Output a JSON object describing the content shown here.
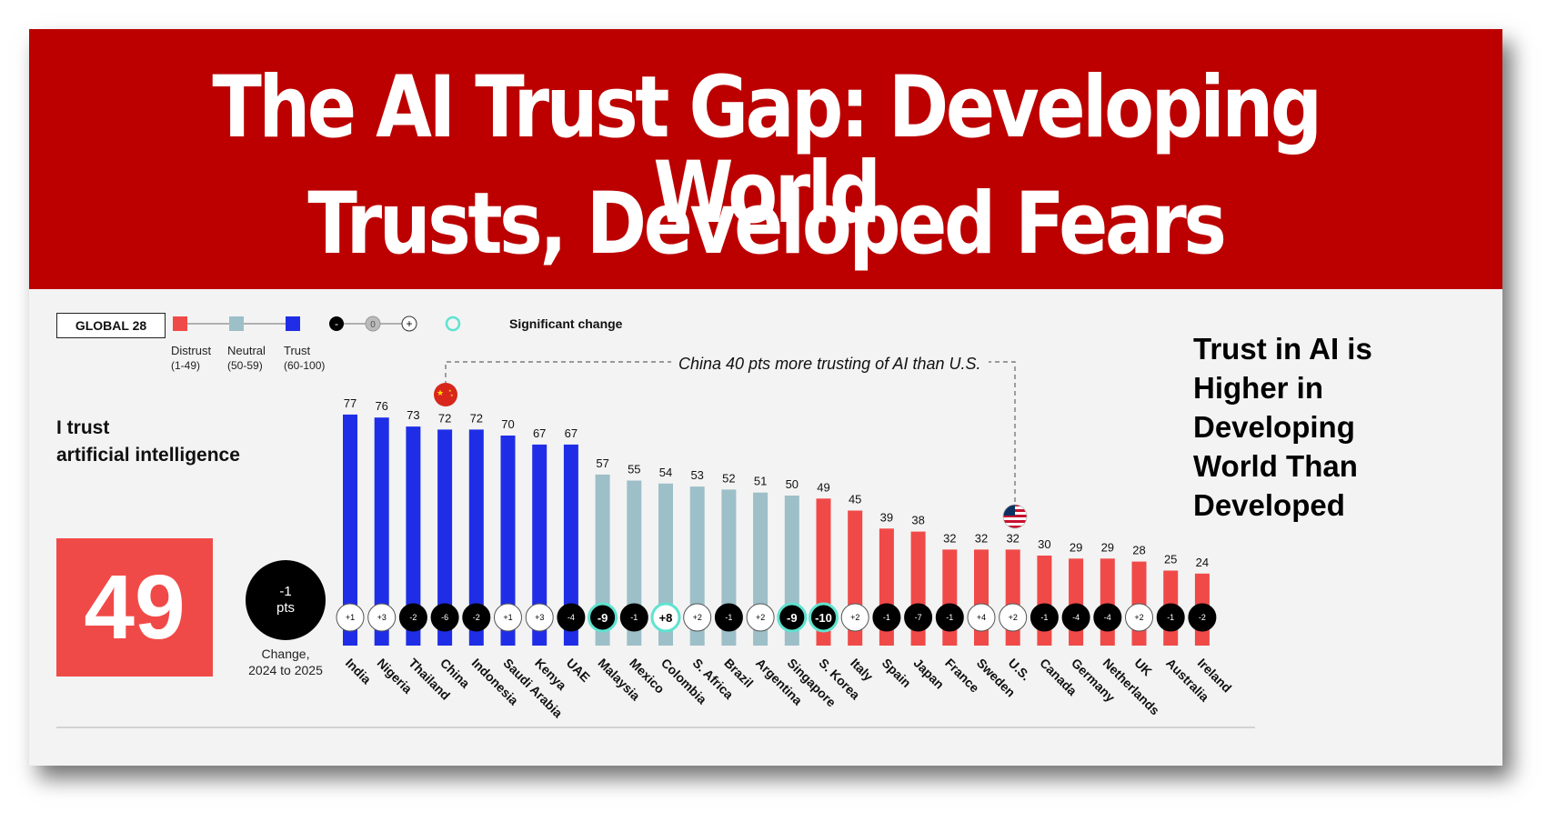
{
  "banner": {
    "line1": "The AI Trust Gap: Developing World",
    "line2": "Trusts, Developed Fears"
  },
  "legend": {
    "global_label": "GLOBAL 28",
    "distrust": "Distrust",
    "distrust_range": "(1-49)",
    "neutral": "Neutral",
    "neutral_range": "(50-59)",
    "trust": "Trust",
    "trust_range": "(60-100)",
    "scale_minus": "-",
    "scale_zero": "0",
    "scale_plus": "+",
    "significant_change": "Significant change"
  },
  "annotation": "China 40 pts more trusting of AI than U.S.",
  "side_note": [
    "Trust in AI is",
    "Higher in",
    "Developing",
    "World Than",
    "Developed"
  ],
  "metric_label": [
    "I trust",
    "artificial intelligence"
  ],
  "global_score": "49",
  "global_change": {
    "value": "-1",
    "unit": "pts",
    "caption": [
      "Change,",
      "2024 to 2025"
    ]
  },
  "colors": {
    "banner": "#bc0000",
    "trust": "#1f2ee6",
    "neutral": "#9dbfc8",
    "distrust": "#f04a48",
    "significant_ring": "#5fe3d0"
  },
  "chart_data": {
    "type": "bar",
    "title": "",
    "xlabel": "",
    "ylabel": "",
    "ylim": [
      0,
      100
    ],
    "grid": false,
    "categories": [
      "India",
      "Nigeria",
      "Thailand",
      "China",
      "Indonesia",
      "Saudi Arabia",
      "Kenya",
      "UAE",
      "Malaysia",
      "Mexico",
      "Colombia",
      "S. Africa",
      "Brazil",
      "Argentina",
      "Singapore",
      "S. Korea",
      "Italy",
      "Spain",
      "Japan",
      "France",
      "Sweden",
      "U.S.",
      "Canada",
      "Germany",
      "Netherlands",
      "UK",
      "Australia",
      "Ireland"
    ],
    "values": [
      77,
      76,
      73,
      72,
      72,
      70,
      67,
      67,
      57,
      55,
      54,
      53,
      52,
      51,
      50,
      49,
      45,
      39,
      38,
      32,
      32,
      32,
      30,
      29,
      29,
      28,
      25,
      24
    ],
    "changes": [
      "+1",
      "+3",
      "-2",
      "-6",
      "-2",
      "+1",
      "+3",
      "-4",
      "-9",
      "-1",
      "+8",
      "+2",
      "-1",
      "+2",
      "-9",
      "-10",
      "+2",
      "-1",
      "-7",
      "-1",
      "+4",
      "+2",
      "-1",
      "-4",
      "-4",
      "+2",
      "-1",
      "-2"
    ],
    "significant": [
      "Malaysia",
      "Colombia",
      "Singapore",
      "S. Korea"
    ],
    "flag_markers": [
      "China",
      "U.S."
    ]
  }
}
